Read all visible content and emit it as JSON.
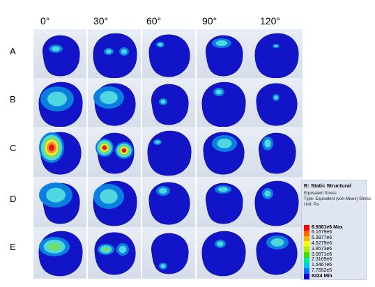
{
  "columns": [
    "0°",
    "30°",
    "60°",
    "90°",
    "120°"
  ],
  "rows": [
    "A",
    "B",
    "C",
    "D",
    "E"
  ],
  "legend": {
    "title": "B: Static Structural",
    "lines": [
      "Equivalent Stress",
      "Type: Equivalent (von-Mises) Stress",
      "Unit: Pa"
    ],
    "entries": [
      {
        "label": "6.9381e6 Max",
        "color": "#ff0000",
        "bold": true
      },
      {
        "label": "6.1679e6",
        "color": "#ff6a00",
        "bold": false
      },
      {
        "label": "5.3977e6",
        "color": "#ffb300",
        "bold": false
      },
      {
        "label": "4.6275e6",
        "color": "#ffff00",
        "bold": false
      },
      {
        "label": "3.8573e6",
        "color": "#a8f000",
        "bold": false
      },
      {
        "label": "3.0871e6",
        "color": "#3ee000",
        "bold": false
      },
      {
        "label": "2.3169e6",
        "color": "#00e8a0",
        "bold": false
      },
      {
        "label": "1.5467e6",
        "color": "#00c8e8",
        "bold": false
      },
      {
        "label": "7.7652e5",
        "color": "#0072ff",
        "bold": false
      },
      {
        "label": "6324 Min",
        "color": "#0000d8",
        "bold": true
      }
    ]
  },
  "colors": {
    "base": "#1214c8",
    "low": "#0a7fe0",
    "cyan": "#4fd6df",
    "green": "#6fe06a",
    "yellow": "#f0e635",
    "orange": "#f28a2a",
    "red": "#e01818"
  }
}
